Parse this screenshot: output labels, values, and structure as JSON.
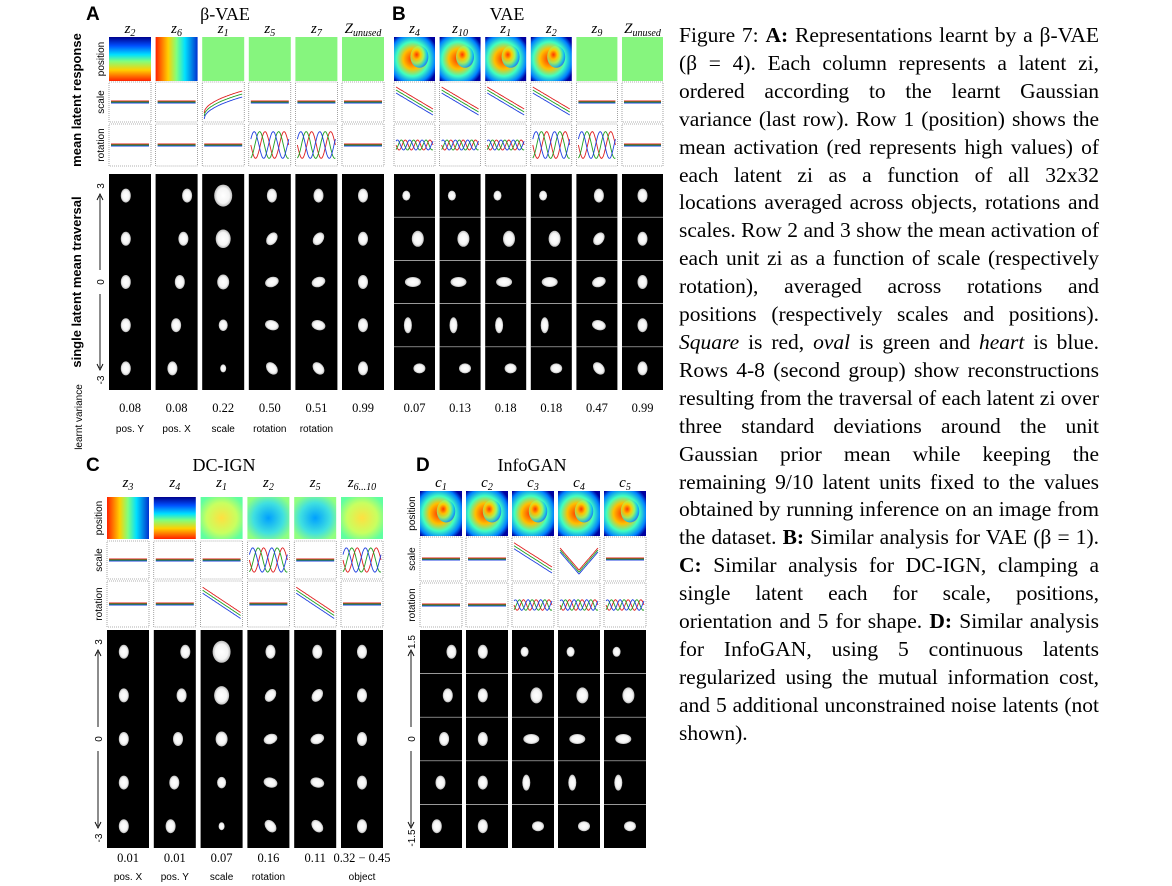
{
  "panels": [
    {
      "letter": "A",
      "title": "β-VAE",
      "columns": [
        {
          "label": "z2",
          "heat": "gradv",
          "variance": "0.08",
          "attribute": "pos. Y",
          "scale": "flat",
          "rotation": "flat",
          "traverse": "posY"
        },
        {
          "label": "z6",
          "heat": "gradh",
          "variance": "0.08",
          "attribute": "pos. X",
          "scale": "flat",
          "rotation": "flat",
          "traverse": "posX"
        },
        {
          "label": "z1",
          "heat": "flat",
          "variance": "0.22",
          "attribute": "scale",
          "scale": "rise",
          "rotation": "flat",
          "traverse": "scale"
        },
        {
          "label": "z5",
          "heat": "flat",
          "variance": "0.50",
          "attribute": "rotation",
          "scale": "flat",
          "rotation": "wave",
          "traverse": "rot"
        },
        {
          "label": "z7",
          "heat": "flat",
          "variance": "0.51",
          "attribute": "rotation",
          "scale": "flat",
          "rotation": "wave",
          "traverse": "rot"
        },
        {
          "label": "Zunused",
          "heat": "flat",
          "variance": "0.99",
          "attribute": "",
          "scale": "flat",
          "rotation": "flat",
          "traverse": "none"
        }
      ],
      "row_labels": [
        "position",
        "scale",
        "rotation"
      ],
      "traverse_ticks": [
        "3",
        "0",
        "-3"
      ]
    },
    {
      "letter": "B",
      "title": "VAE",
      "columns": [
        {
          "label": "z4",
          "heat": "blob",
          "variance": "0.07",
          "attribute": "",
          "scale": "fall",
          "rotation": "wiggle",
          "traverse": "mixed"
        },
        {
          "label": "z10",
          "heat": "blob",
          "variance": "0.13",
          "attribute": "",
          "scale": "fall",
          "rotation": "wiggle",
          "traverse": "mixed"
        },
        {
          "label": "z1",
          "heat": "blob",
          "variance": "0.18",
          "attribute": "",
          "scale": "fall",
          "rotation": "wiggle",
          "traverse": "mixed"
        },
        {
          "label": "z2",
          "heat": "blob",
          "variance": "0.18",
          "attribute": "",
          "scale": "fall",
          "rotation": "wave",
          "traverse": "mixed"
        },
        {
          "label": "z9",
          "heat": "flat",
          "variance": "0.47",
          "attribute": "",
          "scale": "flat",
          "rotation": "wave",
          "traverse": "rot"
        },
        {
          "label": "Zunused",
          "heat": "flat",
          "variance": "0.99",
          "attribute": "",
          "scale": "flat",
          "rotation": "flat",
          "traverse": "none"
        }
      ]
    },
    {
      "letter": "C",
      "title": "DC-IGN",
      "columns": [
        {
          "label": "z3",
          "heat": "gradh",
          "variance": "0.01",
          "attribute": "pos. X",
          "scale": "flat",
          "rotation": "flat",
          "traverse": "posY"
        },
        {
          "label": "z4",
          "heat": "gradv",
          "variance": "0.01",
          "attribute": "pos. Y",
          "scale": "flat",
          "rotation": "flat",
          "traverse": "posX"
        },
        {
          "label": "z1",
          "heat": "warm",
          "variance": "0.07",
          "attribute": "scale",
          "scale": "flat",
          "rotation": "fall",
          "traverse": "scale"
        },
        {
          "label": "z2",
          "heat": "cool",
          "variance": "0.16",
          "attribute": "rotation",
          "scale": "wave",
          "rotation": "flat",
          "traverse": "rot"
        },
        {
          "label": "z5",
          "heat": "cool",
          "variance": "0.11",
          "attribute": "",
          "scale": "flat",
          "rotation": "fall",
          "traverse": "rot"
        },
        {
          "label": "z6...10",
          "heat": "warm",
          "variance": "0.32 − 0.45",
          "attribute": "object",
          "scale": "wave",
          "rotation": "flat",
          "traverse": "none"
        }
      ],
      "row_labels": [
        "position",
        "scale",
        "rotation"
      ],
      "traverse_ticks": [
        "3",
        "0",
        "-3"
      ]
    },
    {
      "letter": "D",
      "title": "InfoGAN",
      "columns": [
        {
          "label": "c1",
          "heat": "blob",
          "scale": "flat",
          "rotation": "flat",
          "traverse": "posX"
        },
        {
          "label": "c2",
          "heat": "blob",
          "scale": "flat",
          "rotation": "flat",
          "traverse": "posY"
        },
        {
          "label": "c3",
          "heat": "blob",
          "scale": "fall",
          "rotation": "wiggle",
          "traverse": "mixed"
        },
        {
          "label": "c4",
          "heat": "blob",
          "scale": "vee",
          "rotation": "wiggle",
          "traverse": "mixed"
        },
        {
          "label": "c5",
          "heat": "blob",
          "scale": "flat",
          "rotation": "wiggle",
          "traverse": "mixed"
        }
      ],
      "row_labels": [
        "position",
        "scale",
        "rotation"
      ],
      "traverse_ticks": [
        "1.5",
        "0",
        "-1.5"
      ]
    }
  ],
  "side_labels": {
    "mean_latent_response": "mean latent response",
    "single_latent_traversal": "single latent mean traversal",
    "learnt_variance": "learnt variance"
  },
  "caption": {
    "figure_label": "Figure 7:",
    "a_label": "A:",
    "a_text_1": "Representations learnt by a",
    "a_beta": "β-VAE (β = 4).",
    "a_text_2": "Each column represents a latent zi, ordered according to the learnt Gaussian variance (last row). Row 1 (position) shows the mean activation (red represents high values) of each latent zi as a function of all 32x32 locations averaged across objects, rotations and scales. Row 2 and 3 show the mean activation of each unit zi as a function of scale (respectively rotation), averaged across rotations and positions (respectively scales and positions).",
    "square": "Square",
    "is_red": "is red,",
    "oval": "oval",
    "is_green": "is green and",
    "heart": "heart",
    "is_blue": "is blue. Rows 4-8 (second group) show reconstructions resulting from the traversal of each latent zi over three standard deviations around the unit Gaussian prior mean while keeping the remaining 9/10 latent units fixed to the values obtained by running inference on an image from the dataset.",
    "b_label": "B:",
    "b_text": "Similar analysis for VAE (β = 1).",
    "c_label": "C:",
    "c_text": "Similar analysis for DC-IGN, clamping a single latent each for scale, positions, orientation and 5 for shape.",
    "d_label": "D:",
    "d_text": "Similar analysis for InfoGAN, using 5 continuous latents regularized using the mutual information cost, and 5 additional unconstrained noise latents (not shown)."
  }
}
